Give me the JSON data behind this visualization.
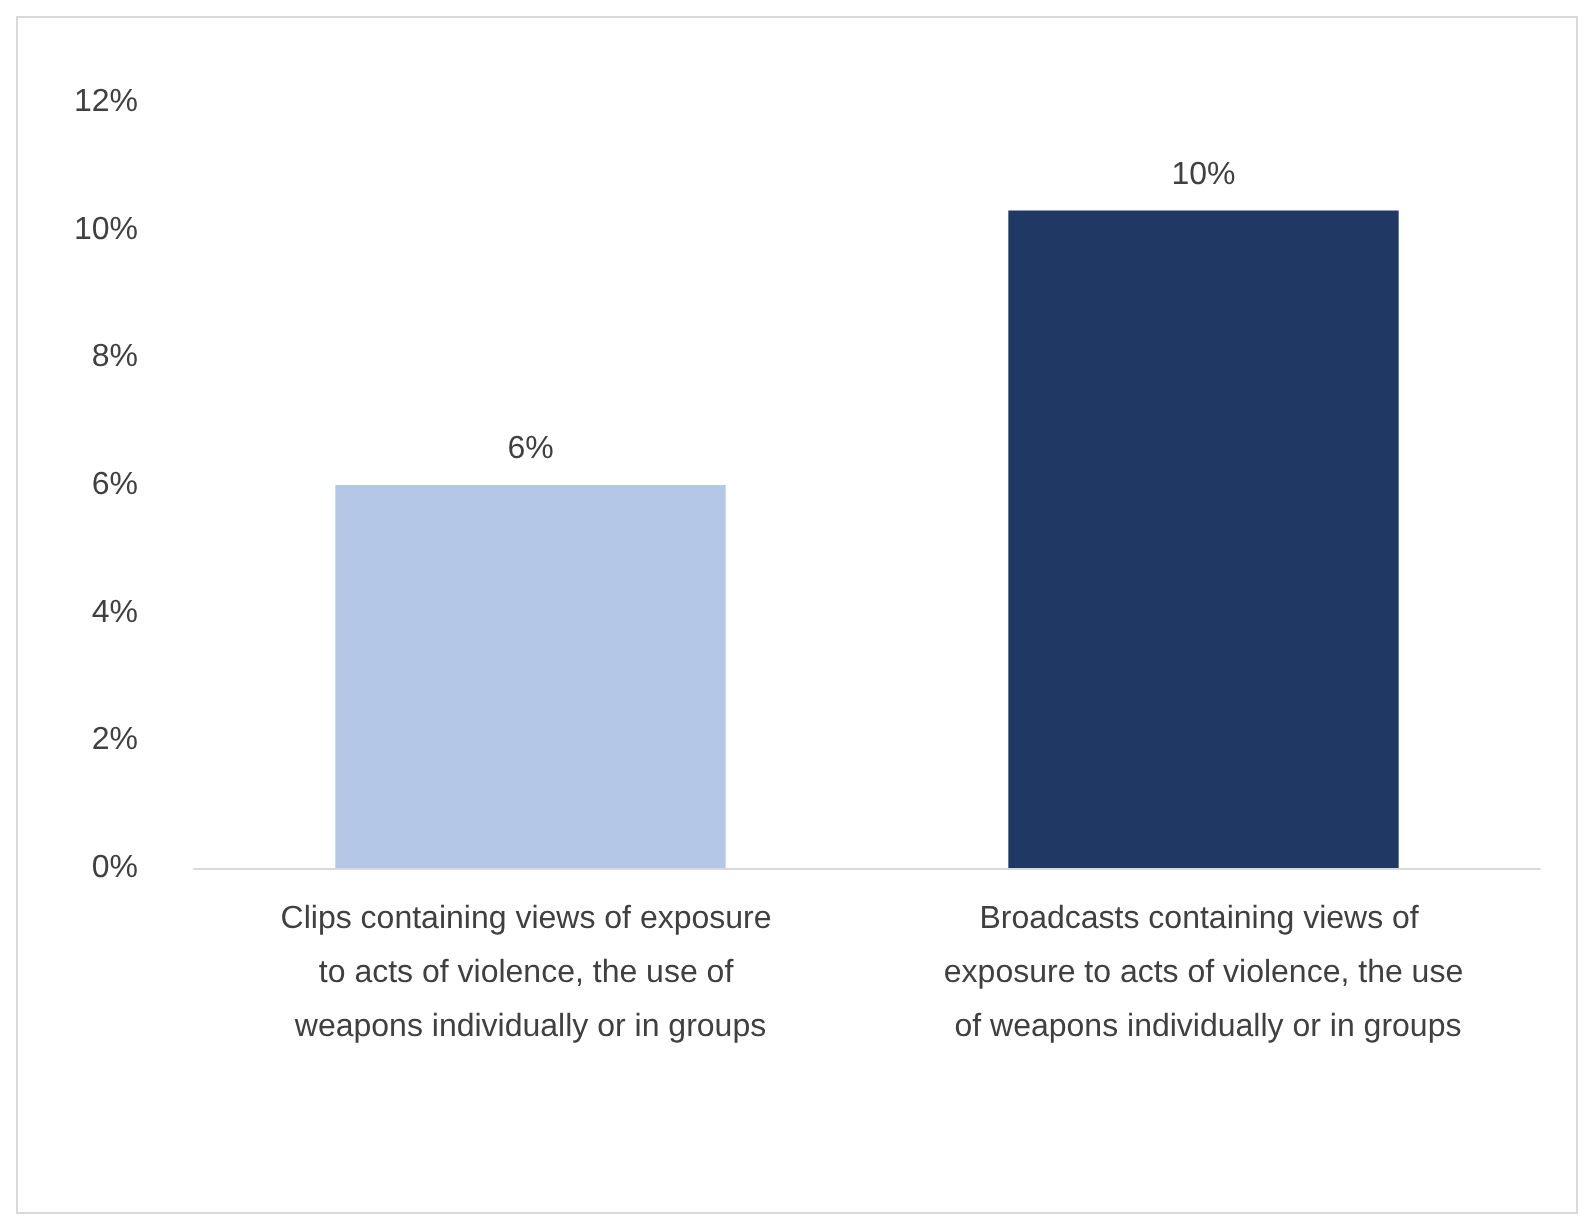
{
  "chart_data": {
    "type": "bar",
    "categories": [
      "Clips containing views of exposure to acts of violence, the use of weapons individually or in groups",
      "Broadcasts containing views of exposure to acts of violence, the use of weapons individually or in groups"
    ],
    "values": [
      6.0,
      10.3
    ],
    "colors": [
      "#b4c7e7",
      "#203864"
    ],
    "value_labels": [
      "6%",
      "10%"
    ],
    "ylim": [
      0,
      12
    ],
    "yticks": [
      {
        "value": 0,
        "label": "0%"
      },
      {
        "value": 2,
        "label": "2%"
      },
      {
        "value": 4,
        "label": "4%"
      },
      {
        "value": 6,
        "label": "6%"
      },
      {
        "value": 8,
        "label": "8%"
      },
      {
        "value": 10,
        "label": "10%"
      },
      {
        "value": 12,
        "label": "12%"
      }
    ],
    "grid": false
  }
}
